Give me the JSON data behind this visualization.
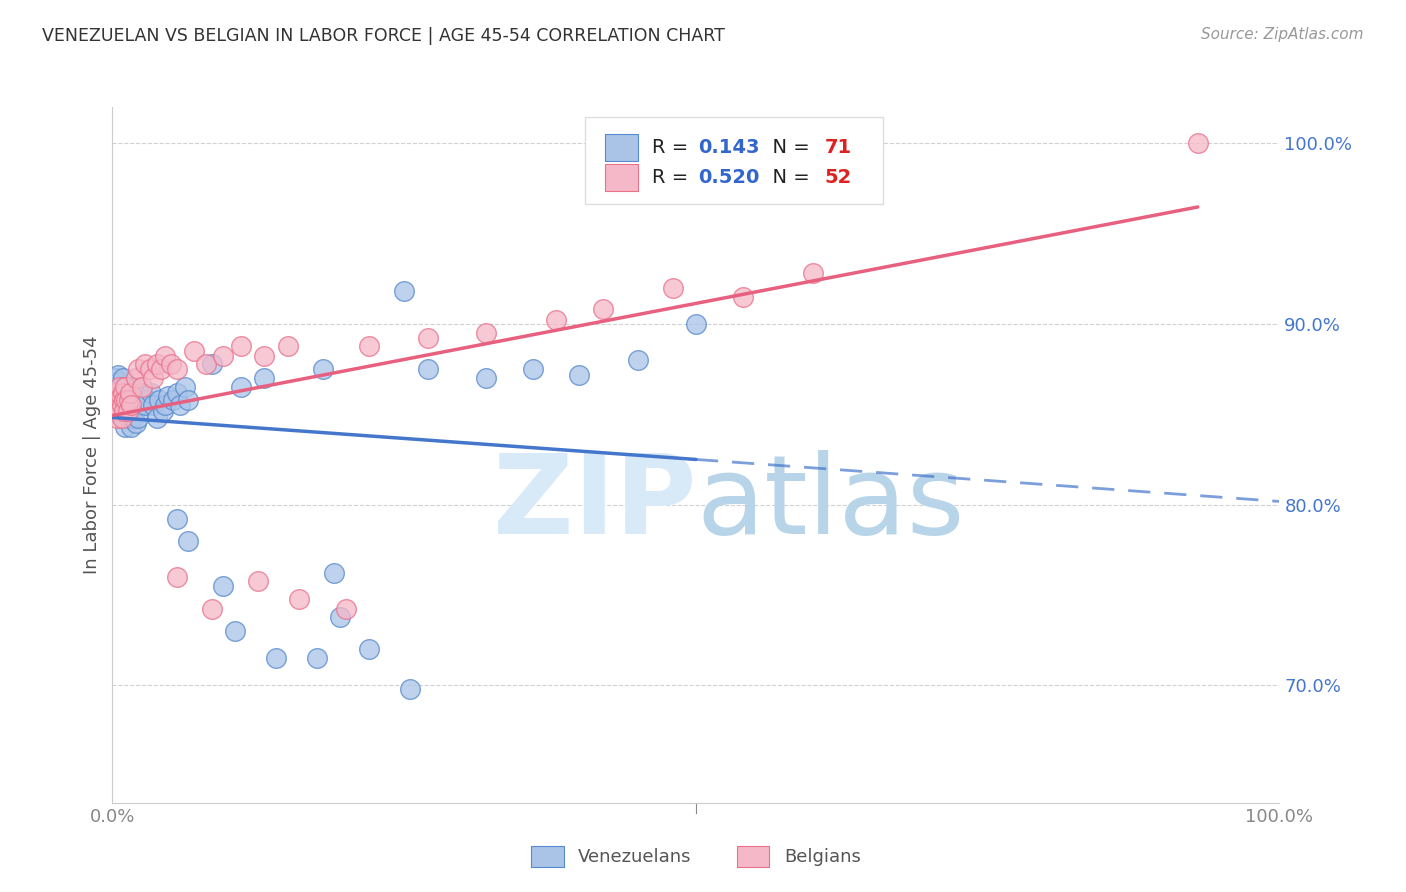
{
  "title": "VENEZUELAN VS BELGIAN IN LABOR FORCE | AGE 45-54 CORRELATION CHART",
  "source": "Source: ZipAtlas.com",
  "ylabel": "In Labor Force | Age 45-54",
  "xlim": [
    0.0,
    1.0
  ],
  "ylim": [
    0.635,
    1.02
  ],
  "yticks": [
    0.7,
    0.8,
    0.9,
    1.0
  ],
  "ytick_labels": [
    "70.0%",
    "80.0%",
    "90.0%",
    "100.0%"
  ],
  "venezuelan_R": 0.143,
  "venezuelan_N": 71,
  "belgian_R": 0.52,
  "belgian_N": 52,
  "legend_labels": [
    "Venezuelans",
    "Belgians"
  ],
  "color_venezuelan_fill": "#aac4e8",
  "color_venezuelan_edge": "#5588cc",
  "color_belgian_fill": "#f5b8c8",
  "color_belgian_edge": "#e8708a",
  "color_line_venezuelan": "#4477cc",
  "color_line_belgian": "#e86080",
  "background_color": "#FFFFFF",
  "grid_color": "#cccccc",
  "title_color": "#333333",
  "source_color": "#999999",
  "ylabel_color": "#555555",
  "tick_color_y": "#4477cc",
  "tick_color_x": "#888888",
  "watermark_zip_color": "#d8eaf8",
  "watermark_atlas_color": "#b8d4e8"
}
